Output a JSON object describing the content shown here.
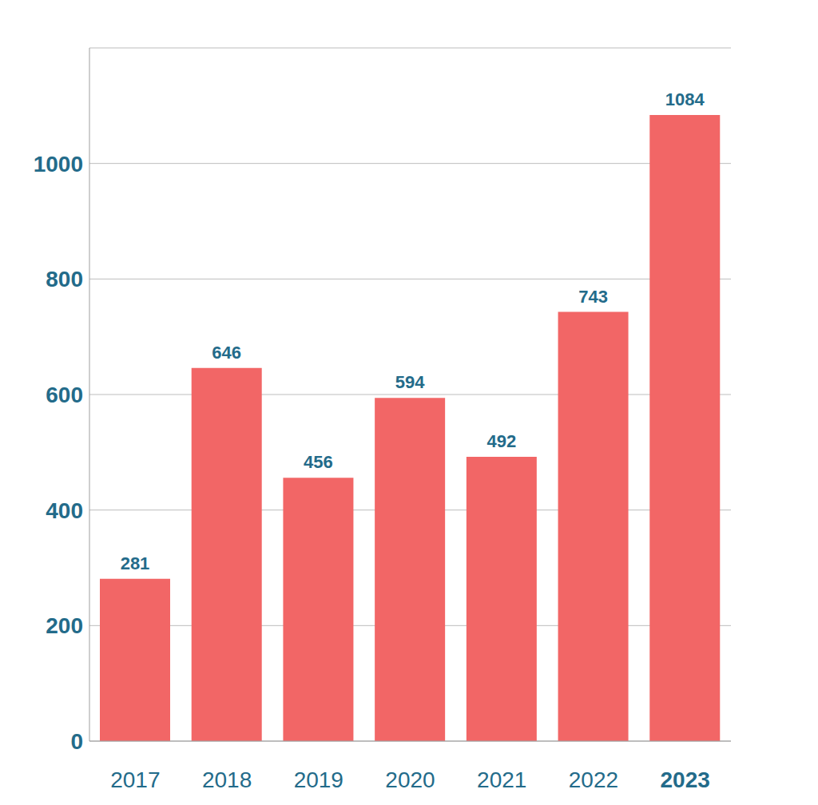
{
  "chart_data": {
    "type": "bar",
    "categories": [
      "2017",
      "2018",
      "2019",
      "2020",
      "2021",
      "2022",
      "2023"
    ],
    "values": [
      281,
      646,
      456,
      594,
      492,
      743,
      1084
    ],
    "color": "#f26666",
    "ylim": [
      0,
      1200
    ],
    "yticks": [
      0,
      200,
      400,
      600,
      800,
      1000
    ],
    "grid": true,
    "data_labels": true
  }
}
